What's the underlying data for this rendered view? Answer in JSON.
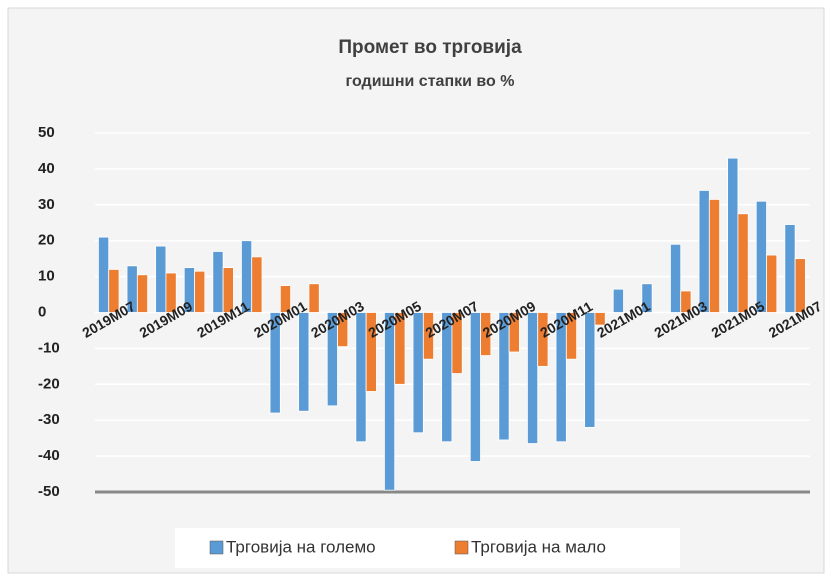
{
  "chart_data": {
    "type": "bar",
    "title": "Промет во трговија",
    "subtitle": "годишни стапки во %",
    "categories": [
      "2019M07",
      null,
      "2019M09",
      null,
      "2019M11",
      null,
      "2020M01",
      null,
      "2020M03",
      null,
      "2020M05",
      null,
      "2020M07",
      null,
      "2020M09",
      null,
      "2020M11",
      null,
      "2021M01",
      null,
      "2021M03",
      null,
      "2021M05",
      null,
      "2021M07"
    ],
    "series": [
      {
        "name": "Трговија на големо",
        "color": "#5b9bd5",
        "values": [
          21,
          13,
          18.5,
          12.5,
          17,
          20,
          -28,
          -27.5,
          -26,
          -36,
          -49.5,
          -33.5,
          -36,
          -41.5,
          -35.5,
          -36.5,
          -36,
          -32,
          6.5,
          8,
          19,
          34,
          43,
          31,
          24.5
        ]
      },
      {
        "name": "Трговија на мало",
        "color": "#ed7d31",
        "values": [
          12,
          10.5,
          11,
          11.5,
          12.5,
          15.5,
          7.5,
          8,
          -9.5,
          -22,
          -20,
          -13,
          -17,
          -12,
          -11,
          -15,
          -13,
          -3.5,
          0,
          0,
          6,
          31.5,
          27.5,
          16,
          15
        ]
      }
    ],
    "ylim": [
      -50,
      50
    ],
    "yticks": [
      -50,
      -40,
      -30,
      -20,
      -10,
      0,
      10,
      20,
      30,
      40,
      50
    ],
    "grid": true,
    "legend": "bottom"
  }
}
